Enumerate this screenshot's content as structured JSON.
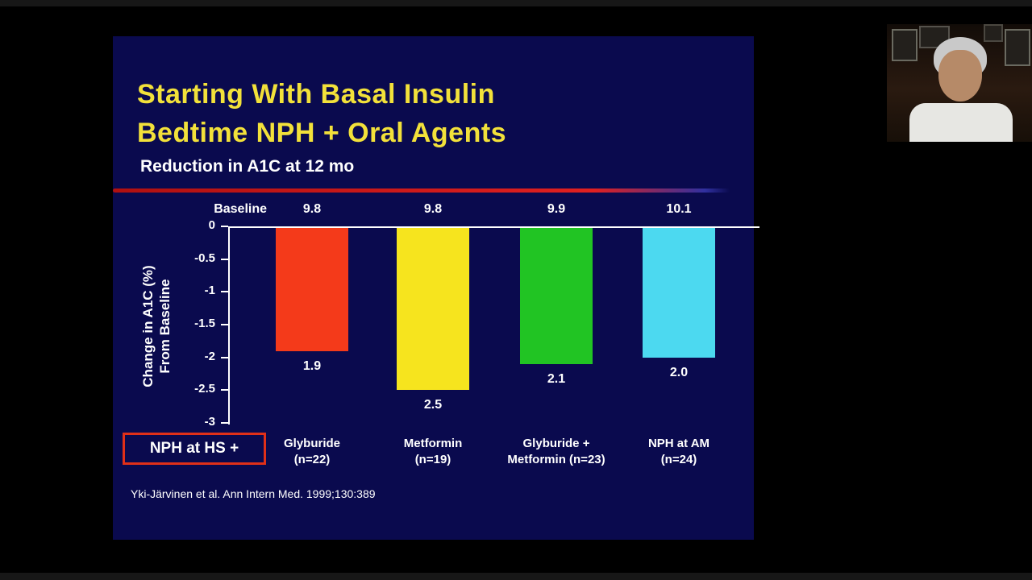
{
  "slide": {
    "title_line1": "Starting With Basal Insulin",
    "title_line2": "Bedtime NPH + Oral Agents",
    "subtitle": "Reduction in A1C at 12 mo",
    "baseline_label": "Baseline",
    "nph_box_label": "NPH at HS +",
    "citation": "Yki-Järvinen et al. Ann Intern Med. 1999;130:389",
    "colors": {
      "slide_background": "#0a0a4e",
      "title_yellow": "#f2e13a",
      "divider_red": "#e02020",
      "nph_box_border": "#e03018"
    }
  },
  "chart_data": {
    "type": "bar",
    "title": "Reduction in A1C at 12 mo",
    "ylabel": "Change in A1C (%) From Baseline",
    "ylabel_lines": [
      "Change in A1C (%)",
      "From Baseline"
    ],
    "xlabel": "",
    "ylim": [
      -3,
      0
    ],
    "ytick_labels": [
      "0",
      "-0.5",
      "-1",
      "-1.5",
      "-2",
      "-2.5",
      "-3"
    ],
    "categories": [
      "Glyburide\n(n=22)",
      "Metformin\n(n=19)",
      "Glyburide +\nMetformin (n=23)",
      "NPH at AM\n(n=24)"
    ],
    "values": [
      -1.9,
      -2.5,
      -2.1,
      -2.0
    ],
    "value_labels": [
      "1.9",
      "2.5",
      "2.1",
      "2.0"
    ],
    "baseline_row_label": "Baseline",
    "baselines": [
      "9.8",
      "9.8",
      "9.9",
      "10.1"
    ],
    "bar_colors": [
      "#f43a1a",
      "#f6e41e",
      "#21c423",
      "#4cd9f0"
    ],
    "grid": false,
    "legend": false,
    "bar_direction": "down"
  },
  "webcam": {
    "content": "presenter on camera"
  }
}
